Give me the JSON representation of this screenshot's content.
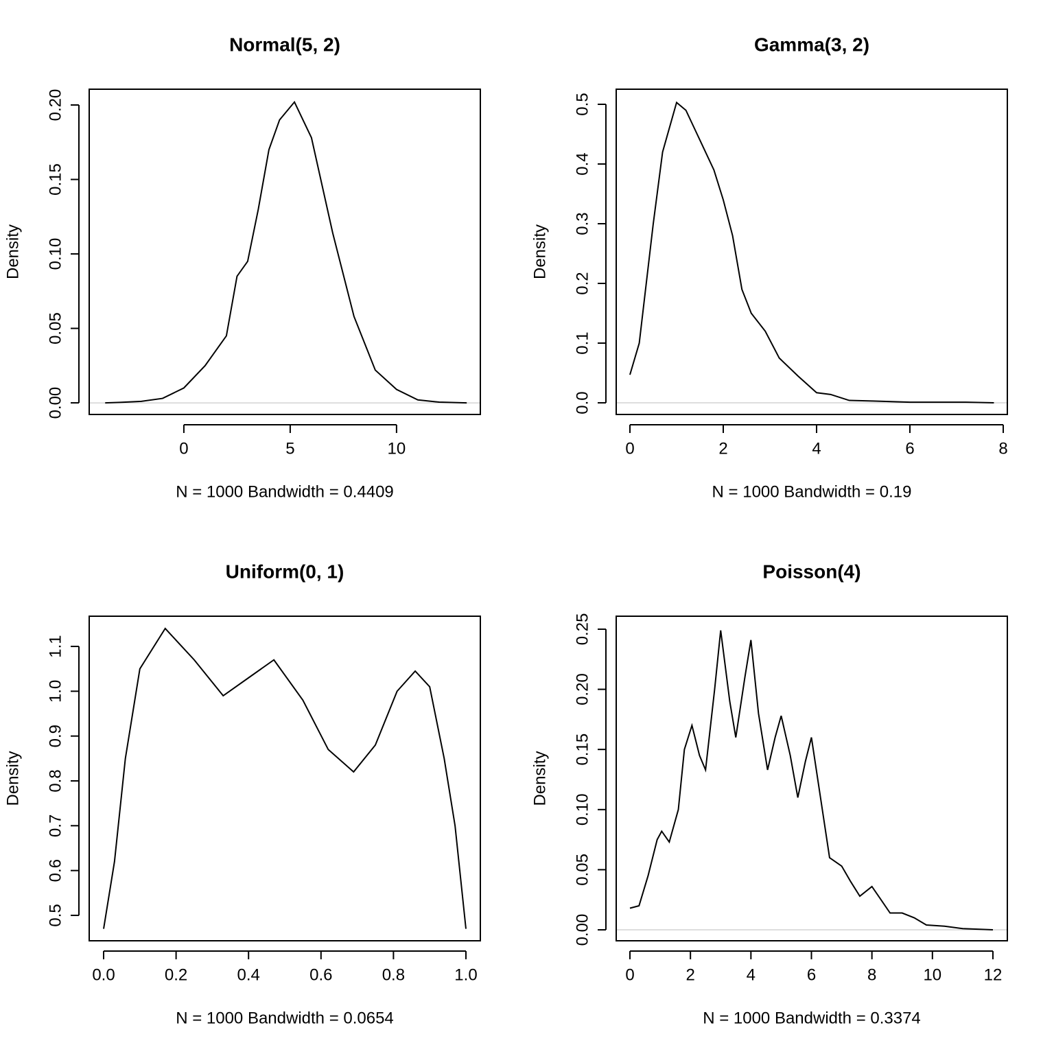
{
  "chart_data": [
    {
      "type": "line",
      "title": "Normal(5, 2)",
      "xlabel": "N = 1000   Bandwidth = 0.4409",
      "ylabel": "Density",
      "color": "#000000",
      "x": [
        -3.7,
        -3,
        -2,
        -1,
        0,
        1,
        2,
        2.5,
        3,
        3.5,
        4,
        4.5,
        5.2,
        6,
        7,
        8,
        9,
        10,
        11,
        12,
        13.3
      ],
      "values": [
        0,
        0.0003,
        0.001,
        0.003,
        0.01,
        0.025,
        0.045,
        0.085,
        0.095,
        0.13,
        0.17,
        0.19,
        0.202,
        0.178,
        0.114,
        0.058,
        0.022,
        0.009,
        0.002,
        0.0005,
        0
      ],
      "xlim": [
        -4.45,
        13.94
      ],
      "ylim": [
        -0.0078,
        0.2106
      ],
      "xticks": [
        0,
        5,
        10
      ],
      "yticks": [
        {
          "value": 0,
          "label": "0.00"
        },
        0.05,
        {
          "value": 0.1,
          "label": "0.10"
        },
        0.15,
        {
          "value": 0.2,
          "label": "0.20"
        }
      ]
    },
    {
      "type": "line",
      "title": "Gamma(3, 2)",
      "xlabel": "N = 1000   Bandwidth = 0.19",
      "ylabel": "Density",
      "color": "#000000",
      "x": [
        0,
        0.2,
        0.5,
        0.7,
        1.0,
        1.2,
        1.5,
        1.8,
        2.0,
        2.2,
        2.4,
        2.6,
        2.9,
        3.2,
        3.6,
        4.0,
        4.3,
        4.7,
        5.2,
        6,
        7.2,
        7.8
      ],
      "values": [
        0.047,
        0.1,
        0.3,
        0.42,
        0.503,
        0.49,
        0.44,
        0.39,
        0.34,
        0.28,
        0.19,
        0.15,
        0.12,
        0.075,
        0.045,
        0.017,
        0.014,
        0.004,
        0.003,
        0.001,
        0.001,
        0
      ],
      "xlim": [
        -0.294,
        8.088
      ],
      "ylim": [
        -0.0195,
        0.5253
      ],
      "xticks": [
        0,
        2,
        4,
        6,
        8
      ],
      "yticks": [
        {
          "value": 0,
          "label": "0.0"
        },
        0.1,
        0.2,
        0.3,
        0.4,
        0.5
      ]
    },
    {
      "type": "line",
      "title": "Uniform(0, 1)",
      "xlabel": "N = 1000   Bandwidth = 0.0654",
      "ylabel": "Density",
      "color": "#000000",
      "x": [
        0,
        0.03,
        0.06,
        0.1,
        0.17,
        0.25,
        0.33,
        0.4,
        0.47,
        0.55,
        0.62,
        0.69,
        0.75,
        0.81,
        0.86,
        0.9,
        0.94,
        0.97,
        1.0
      ],
      "values": [
        0.47,
        0.62,
        0.85,
        1.05,
        1.14,
        1.07,
        0.99,
        1.03,
        1.07,
        0.98,
        0.87,
        0.82,
        0.88,
        1.0,
        1.045,
        1.01,
        0.85,
        0.7,
        0.47
      ],
      "xlim": [
        -0.0398,
        1.0398
      ],
      "ylim": [
        0.4433,
        1.1674
      ],
      "xticks": [
        {
          "value": 0,
          "label": "0.0"
        },
        0.2,
        0.4,
        0.6,
        0.8,
        {
          "value": 1,
          "label": "1.0"
        }
      ],
      "yticks": [
        0.5,
        0.6,
        0.7,
        0.8,
        0.9,
        {
          "value": 1,
          "label": "1.0"
        },
        1.1
      ]
    },
    {
      "type": "line",
      "title": "Poisson(4)",
      "xlabel": "N = 1000   Bandwidth = 0.3374",
      "ylabel": "Density",
      "color": "#000000",
      "x": [
        0,
        0.3,
        0.6,
        0.9,
        1.05,
        1.3,
        1.6,
        1.8,
        2.05,
        2.3,
        2.5,
        2.8,
        3.0,
        3.3,
        3.5,
        3.8,
        4.0,
        4.25,
        4.55,
        4.8,
        5.0,
        5.3,
        5.55,
        5.8,
        6.0,
        6.3,
        6.6,
        7.0,
        7.3,
        7.6,
        8.0,
        8.3,
        8.6,
        9.0,
        9.4,
        9.8,
        10.4,
        11,
        12
      ],
      "values": [
        0.018,
        0.02,
        0.045,
        0.075,
        0.082,
        0.073,
        0.1,
        0.15,
        0.17,
        0.145,
        0.133,
        0.2,
        0.249,
        0.19,
        0.16,
        0.21,
        0.241,
        0.18,
        0.133,
        0.16,
        0.178,
        0.145,
        0.11,
        0.14,
        0.16,
        0.11,
        0.06,
        0.053,
        0.04,
        0.028,
        0.036,
        0.025,
        0.014,
        0.014,
        0.01,
        0.004,
        0.003,
        0.001,
        0
      ],
      "xlim": [
        -0.454,
        12.477
      ],
      "ylim": [
        -0.0091,
        0.2608
      ],
      "xticks": [
        0,
        2,
        4,
        6,
        8,
        10,
        12
      ],
      "yticks": [
        {
          "value": 0,
          "label": "0.00"
        },
        0.05,
        {
          "value": 0.1,
          "label": "0.10"
        },
        0.15,
        {
          "value": 0.2,
          "label": "0.20"
        },
        0.25
      ]
    }
  ]
}
